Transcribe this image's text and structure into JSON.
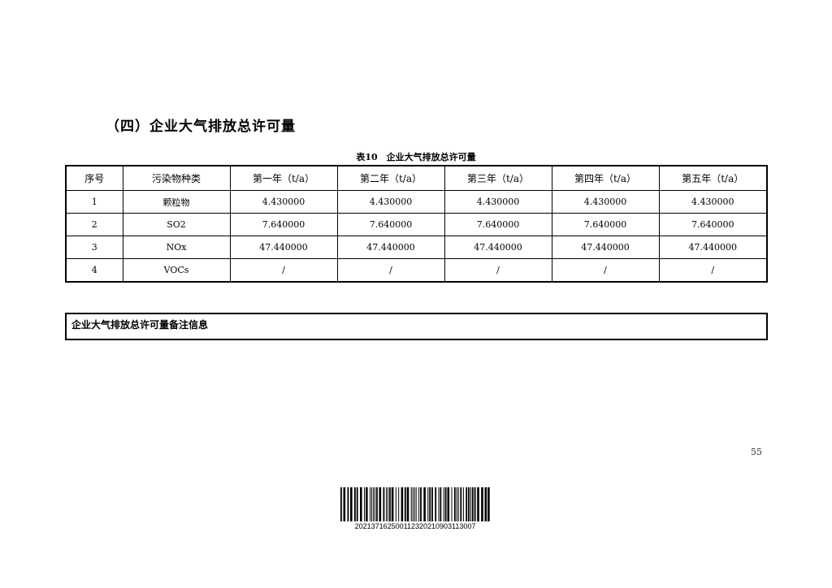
{
  "heading": "（四）企业大气排放总许可量",
  "caption": "表10　企业大气排放总许可量",
  "table": {
    "headers": [
      "序号",
      "污染物种类",
      "第一年（t/a）",
      "第二年（t/a）",
      "第三年（t/a）",
      "第四年（t/a）",
      "第五年（t/a）"
    ],
    "rows": [
      [
        "1",
        "颗粒物",
        "4.430000",
        "4.430000",
        "4.430000",
        "4.430000",
        "4.430000"
      ],
      [
        "2",
        "SO2",
        "7.640000",
        "7.640000",
        "7.640000",
        "7.640000",
        "7.640000"
      ],
      [
        "3",
        "NOx",
        "47.440000",
        "47.440000",
        "47.440000",
        "47.440000",
        "47.440000"
      ],
      [
        "4",
        "VOCs",
        "/",
        "/",
        "/",
        "/",
        "/"
      ]
    ]
  },
  "remarks_label": "企业大气排放总许可量备注信息",
  "page_number": "55",
  "barcode_number": "202137162500112320210903113007"
}
